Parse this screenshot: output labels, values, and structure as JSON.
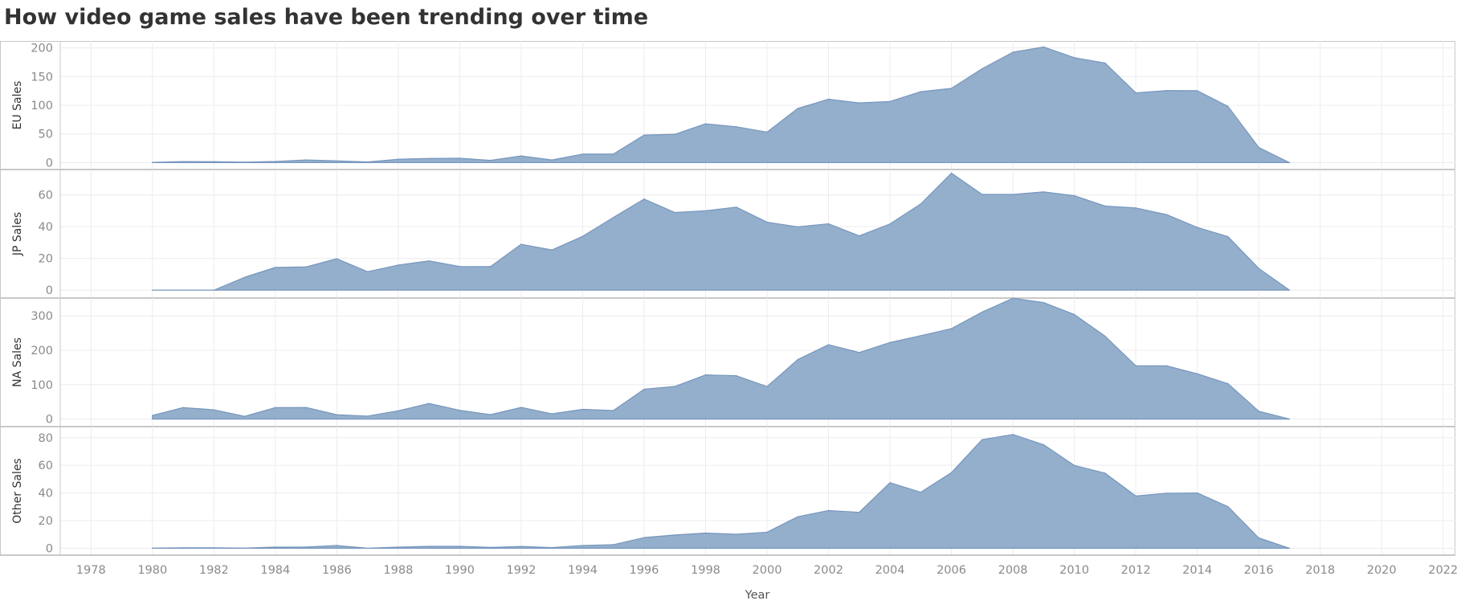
{
  "title": "How video game sales have been trending over time",
  "chart_data": {
    "type": "area",
    "title": "How video game sales have been trending over time",
    "xlabel": "Year",
    "x_ticks": [
      1978,
      1980,
      1982,
      1984,
      1986,
      1988,
      1990,
      1992,
      1994,
      1996,
      1998,
      2000,
      2002,
      2004,
      2006,
      2008,
      2010,
      2012,
      2014,
      2016,
      2018,
      2020,
      2022
    ],
    "xlim": [
      1977,
      2022.4
    ],
    "grid": true,
    "color": "#8aa8c8",
    "x": [
      1980,
      1981,
      1982,
      1983,
      1984,
      1985,
      1986,
      1987,
      1988,
      1989,
      1990,
      1991,
      1992,
      1993,
      1994,
      1995,
      1996,
      1997,
      1998,
      1999,
      2000,
      2001,
      2002,
      2003,
      2004,
      2005,
      2006,
      2007,
      2008,
      2009,
      2010,
      2011,
      2012,
      2013,
      2014,
      2015,
      2016,
      2017
    ],
    "panels": [
      {
        "name": "EU Sales",
        "ylabel": "EU Sales",
        "ylim": [
          -12,
          212
        ],
        "yticks": [
          0,
          50,
          100,
          150,
          200
        ],
        "values": [
          0.5,
          1.9,
          1.6,
          0.8,
          2.1,
          4.7,
          3.0,
          1.1,
          5.9,
          7.3,
          7.6,
          3.9,
          11.7,
          4.6,
          14.9,
          14.9,
          48,
          49.4,
          67.7,
          62.5,
          53.2,
          94.4,
          110.5,
          104,
          106.5,
          123.6,
          129.4,
          163.7,
          192.4,
          201.6,
          182.8,
          173.6,
          121.6,
          125.6,
          125.4,
          98,
          26.5,
          0
        ]
      },
      {
        "name": "JP Sales",
        "ylabel": "JP Sales",
        "ylim": [
          -5,
          76
        ],
        "yticks": [
          0,
          20,
          40,
          60
        ],
        "values": [
          0,
          0,
          0,
          8.1,
          14.3,
          14.6,
          19.8,
          11.6,
          15.8,
          18.4,
          14.9,
          14.8,
          28.9,
          25.3,
          33.9,
          45.8,
          57.4,
          48.9,
          50,
          52.3,
          42.8,
          39.9,
          41.8,
          34.2,
          41.7,
          54.3,
          73.7,
          60.3,
          60.3,
          61.9,
          59.5,
          53,
          51.8,
          47.6,
          39.5,
          33.7,
          13.7,
          0
        ]
      },
      {
        "name": "NA Sales",
        "ylabel": "NA Sales",
        "ylim": [
          -22,
          352
        ],
        "yticks": [
          0,
          100,
          200,
          300
        ],
        "values": [
          10.6,
          33.4,
          26.9,
          7.8,
          33.3,
          33.7,
          12.5,
          8.5,
          23.9,
          45.2,
          25.5,
          12.8,
          33.9,
          15.1,
          28.2,
          24.8,
          86.8,
          94.8,
          128.4,
          126.1,
          94.5,
          173.1,
          216.2,
          193.6,
          222.6,
          242.6,
          263.1,
          311.2,
          351.4,
          338.9,
          304.2,
          241.2,
          154.9,
          154.8,
          131.9,
          102.8,
          22.9,
          0
        ]
      },
      {
        "name": "Other Sales",
        "ylabel": "Other Sales",
        "ylim": [
          -5,
          88
        ],
        "yticks": [
          0,
          20,
          40,
          60,
          80
        ],
        "values": [
          0.1,
          0.3,
          0.3,
          0.1,
          0.8,
          0.9,
          2.0,
          0.0,
          0.8,
          1.4,
          1.4,
          0.6,
          1.3,
          0.5,
          2.0,
          2.6,
          7.7,
          9.6,
          11.0,
          10.1,
          11.6,
          22.8,
          27.3,
          26,
          47.4,
          40.5,
          54.7,
          78.6,
          82.3,
          74.9,
          59.9,
          54.3,
          37.8,
          39.8,
          40,
          30.1,
          7.5,
          0
        ]
      }
    ]
  }
}
